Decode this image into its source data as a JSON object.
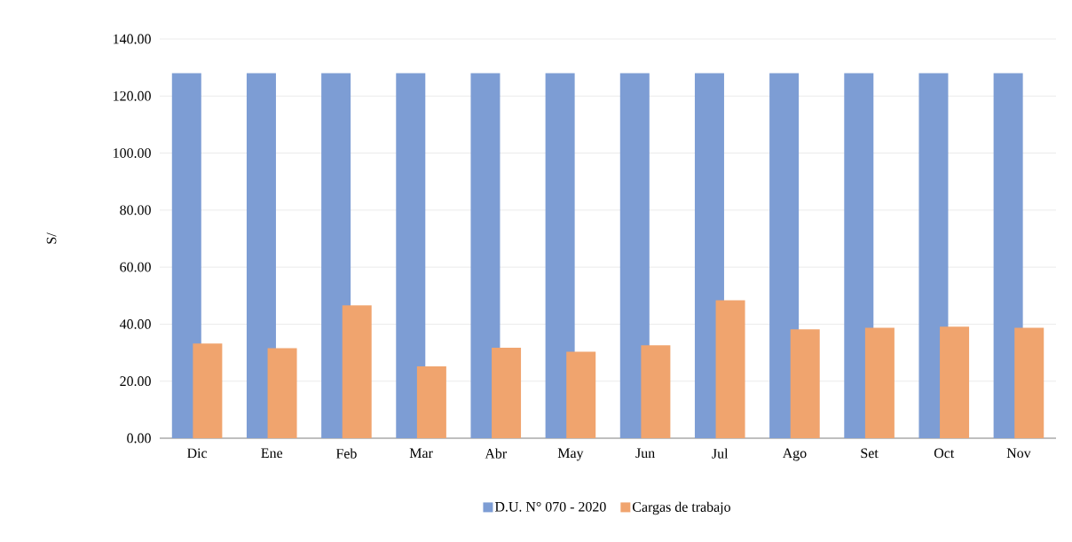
{
  "chart_data": {
    "type": "bar",
    "ylabel": "S/",
    "categories": [
      "Dic",
      "Ene",
      "Feb",
      "Mar",
      "Abr",
      "May",
      "Jun",
      "Jul",
      "Ago",
      "Set",
      "Oct",
      "Nov"
    ],
    "series": [
      {
        "name": "D.U. N° 070 - 2020",
        "color": "#7d9dd4",
        "values": [
          128,
          128,
          128,
          128,
          128,
          128,
          128,
          128,
          128,
          128,
          128,
          128
        ]
      },
      {
        "name": "Cargas de trabajo",
        "color": "#f0a46e",
        "values": [
          33.2,
          31.6,
          46.6,
          25.2,
          31.7,
          30.3,
          32.6,
          48.4,
          38.2,
          38.7,
          39.1,
          38.7
        ]
      }
    ],
    "ylim": [
      0,
      140
    ],
    "yticks": [
      {
        "value": 0,
        "label": "0.00"
      },
      {
        "value": 20,
        "label": "20.00"
      },
      {
        "value": 40,
        "label": "40.00"
      },
      {
        "value": 60,
        "label": "60.00"
      },
      {
        "value": 80,
        "label": "80.00"
      },
      {
        "value": 100,
        "label": "100.00"
      },
      {
        "value": 120,
        "label": "120.00"
      },
      {
        "value": 140,
        "label": "140.00"
      }
    ],
    "grid": "y",
    "legend": "bottom"
  }
}
